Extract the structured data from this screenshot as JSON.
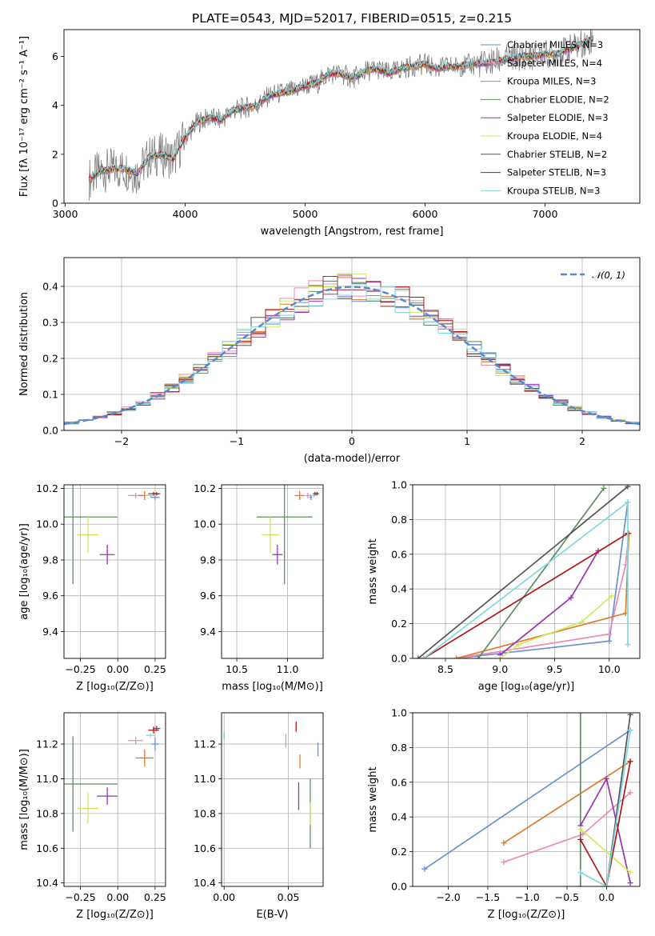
{
  "figure": {
    "title": "PLATE=0543, MJD=52017, FIBERID=0515, z=0.215"
  },
  "colors": {
    "Chabrier MILES": "#6a8fd6",
    "Salpeter MILES": "#e98cb8",
    "Kroupa MILES": "#dd7c2c",
    "Chabrier ELODIE": "#5b8f62",
    "Salpeter ELODIE": "#9a35b2",
    "Kroupa ELODIE": "#d2e85a",
    "Chabrier STELIB": "#555555",
    "Salpeter STELIB": "#b01818",
    "Kroupa STELIB": "#7fd8de"
  },
  "chart_data": [
    {
      "type": "line",
      "id": "spectrum",
      "title": "PLATE=0543, MJD=52017, FIBERID=0515, z=0.215",
      "xlabel": "wavelength [Angstrom, rest frame]",
      "ylabel": "Flux [f_λ 10^-17 erg cm^-2 s^-1 A^-1]",
      "xlim": [
        2990,
        7790
      ],
      "ylim": [
        0,
        7.1
      ],
      "xticks": [
        3000,
        4000,
        5000,
        6000,
        7000
      ],
      "yticks": [
        0,
        2,
        4,
        6
      ],
      "grid": false,
      "legend_position": "right",
      "data_series": {
        "name": "",
        "x": [
          3200,
          3300,
          3400,
          3500,
          3600,
          3700,
          3800,
          3900,
          4000,
          4100,
          4200,
          4300,
          4400,
          4500,
          4600,
          4700,
          4800,
          4900,
          5000,
          5100,
          5200,
          5300,
          5400,
          5500,
          5600,
          5700,
          5800,
          5900,
          6000,
          6100,
          6200,
          6300,
          6400,
          6500,
          6600,
          6700,
          6800,
          6900,
          7000,
          7100,
          7200,
          7300,
          7400
        ],
        "y": [
          1.0,
          1.3,
          1.4,
          1.4,
          1.2,
          1.9,
          2.0,
          1.8,
          2.7,
          3.3,
          3.5,
          3.4,
          3.8,
          3.9,
          4.0,
          4.4,
          4.5,
          4.6,
          4.8,
          4.9,
          5.3,
          5.3,
          5.1,
          5.4,
          5.5,
          5.3,
          5.5,
          5.6,
          5.7,
          5.5,
          5.6,
          5.6,
          5.7,
          5.7,
          5.8,
          5.9,
          6.0,
          6.0,
          6.1,
          6.1,
          6.3,
          6.5,
          6.7
        ]
      },
      "series": [
        {
          "name": "Chabrier MILES",
          "label": "Chabrier MILES, N_SSP=3"
        },
        {
          "name": "Salpeter MILES",
          "label": "Salpeter MILES, N_SSP=4"
        },
        {
          "name": "Kroupa MILES",
          "label": "Kroupa MILES, N_SSP=3"
        },
        {
          "name": "Chabrier ELODIE",
          "label": "Chabrier ELODIE, N_SSP=2"
        },
        {
          "name": "Salpeter ELODIE",
          "label": "Salpeter ELODIE, N_SSP=3"
        },
        {
          "name": "Kroupa ELODIE",
          "label": "Kroupa ELODIE, N_SSP=4"
        },
        {
          "name": "Chabrier STELIB",
          "label": "Chabrier STELIB, N_SSP=2"
        },
        {
          "name": "Salpeter STELIB",
          "label": "Salpeter STELIB, N_SSP=3"
        },
        {
          "name": "Kroupa STELIB",
          "label": "Kroupa STELIB, N_SSP=3"
        }
      ]
    },
    {
      "type": "line",
      "id": "residuals",
      "xlabel": "(data-model)/error",
      "ylabel": "Normed distribution",
      "xlim": [
        -2.5,
        2.5
      ],
      "ylim": [
        0,
        0.48
      ],
      "xticks": [
        -2,
        -1,
        0,
        1,
        2
      ],
      "yticks": [
        0.0,
        0.1,
        0.2,
        0.3,
        0.4
      ],
      "grid": true,
      "legend_position": "top-right",
      "reference_curve": {
        "name": "N(0,1)",
        "label": "𝒩(0, 1)",
        "mean": 0,
        "sigma": 1
      }
    },
    {
      "type": "scatter",
      "id": "age-vs-Z",
      "xlabel": "Z [log10(Z/Z⊙)]",
      "ylabel": "age [log10(age/yr)]",
      "xlim": [
        -0.36,
        0.32
      ],
      "ylim": [
        9.25,
        10.22
      ],
      "xticks": [
        -0.25,
        0.0,
        0.25
      ],
      "yticks": [
        9.4,
        9.6,
        9.8,
        10.0,
        10.2
      ],
      "grid": true,
      "points": [
        {
          "series": "Chabrier MILES",
          "x": 0.25,
          "y": 10.15,
          "xerr": 0.06,
          "yerr": 0.03
        },
        {
          "series": "Salpeter MILES",
          "x": 0.12,
          "y": 10.16,
          "xerr": 0.1,
          "yerr": 0.03
        },
        {
          "series": "Kroupa MILES",
          "x": 0.18,
          "y": 10.16,
          "xerr": 0.08,
          "yerr": 0.05
        },
        {
          "series": "Chabrier ELODIE",
          "x": -0.3,
          "y": 10.04,
          "xerr": 0.6,
          "yerr": 0.75
        },
        {
          "series": "Salpeter ELODIE",
          "x": -0.07,
          "y": 9.83,
          "xerr": 0.1,
          "yerr": 0.11
        },
        {
          "series": "Kroupa ELODIE",
          "x": -0.2,
          "y": 9.94,
          "xerr": 0.14,
          "yerr": 0.2
        },
        {
          "series": "Chabrier STELIB",
          "x": 0.26,
          "y": 10.17,
          "xerr": 0.05,
          "yerr": 0.02
        },
        {
          "series": "Salpeter STELIB",
          "x": 0.24,
          "y": 10.17,
          "xerr": 0.07,
          "yerr": 0.02
        },
        {
          "series": "Kroupa STELIB",
          "x": 0.22,
          "y": 10.16,
          "xerr": 0.07,
          "yerr": 0.02
        }
      ]
    },
    {
      "type": "scatter",
      "id": "age-vs-mass",
      "xlabel": "mass [log10(M/M⊙)]",
      "ylabel": "",
      "xlim": [
        10.35,
        11.35
      ],
      "ylim": [
        9.25,
        10.22
      ],
      "xticks": [
        10.5,
        11.0
      ],
      "yticks": [
        9.4,
        9.6,
        9.8,
        10.0,
        10.2
      ],
      "grid": true,
      "points": [
        {
          "series": "Chabrier MILES",
          "x": 11.23,
          "y": 10.15,
          "xerr": 0.03,
          "yerr": 0.03
        },
        {
          "series": "Salpeter MILES",
          "x": 11.2,
          "y": 10.16,
          "xerr": 0.05,
          "yerr": 0.03
        },
        {
          "series": "Kroupa MILES",
          "x": 11.12,
          "y": 10.16,
          "xerr": 0.1,
          "yerr": 0.05
        },
        {
          "series": "Chabrier ELODIE",
          "x": 10.97,
          "y": 10.04,
          "xerr": 0.55,
          "yerr": 0.75
        },
        {
          "series": "Salpeter ELODIE",
          "x": 10.9,
          "y": 9.83,
          "xerr": 0.1,
          "yerr": 0.11
        },
        {
          "series": "Kroupa ELODIE",
          "x": 10.83,
          "y": 9.94,
          "xerr": 0.17,
          "yerr": 0.2
        },
        {
          "series": "Chabrier STELIB",
          "x": 11.29,
          "y": 10.17,
          "xerr": 0.04,
          "yerr": 0.02
        },
        {
          "series": "Salpeter STELIB",
          "x": 11.27,
          "y": 10.17,
          "xerr": 0.04,
          "yerr": 0.02
        },
        {
          "series": "Kroupa STELIB",
          "x": 11.26,
          "y": 10.16,
          "xerr": 0.04,
          "yerr": 0.02
        }
      ]
    },
    {
      "type": "line",
      "id": "cumulative-mass-weight-age",
      "xlabel": "age [log10(age/yr)]",
      "ylabel": "mass weight",
      "xlim": [
        8.2,
        10.28
      ],
      "ylim": [
        0,
        1
      ],
      "xticks": [
        8.5,
        9.0,
        9.5,
        10.0
      ],
      "yticks": [
        0.0,
        0.2,
        0.4,
        0.6,
        0.8,
        1.0
      ],
      "grid": true,
      "series": [
        {
          "name": "Chabrier MILES",
          "x": [
            8.6,
            10.0,
            10.17
          ],
          "y": [
            0.0,
            0.1,
            0.9
          ]
        },
        {
          "name": "Salpeter MILES",
          "x": [
            8.6,
            10.0,
            10.15,
            10.18
          ],
          "y": [
            0.0,
            0.14,
            0.54,
            0.72
          ]
        },
        {
          "name": "Kroupa MILES",
          "x": [
            8.6,
            10.15,
            10.18
          ],
          "y": [
            0.0,
            0.26,
            0.72
          ]
        },
        {
          "name": "Chabrier ELODIE",
          "x": [
            8.8,
            9.95
          ],
          "y": [
            0.0,
            0.98
          ]
        },
        {
          "name": "Salpeter ELODIE",
          "x": [
            9.0,
            9.65,
            9.9
          ],
          "y": [
            0.02,
            0.35,
            0.62
          ]
        },
        {
          "name": "Kroupa ELODIE",
          "x": [
            9.0,
            9.17,
            9.75,
            10.02
          ],
          "y": [
            0.0,
            0.08,
            0.21,
            0.36
          ]
        },
        {
          "name": "Chabrier STELIB",
          "x": [
            8.25,
            10.17
          ],
          "y": [
            0.0,
            0.99
          ]
        },
        {
          "name": "Salpeter STELIB",
          "x": [
            8.3,
            10.17
          ],
          "y": [
            0.0,
            0.72
          ]
        },
        {
          "name": "Kroupa STELIB",
          "x": [
            8.3,
            10.17,
            10.17
          ],
          "y": [
            0.0,
            0.9,
            0.08
          ]
        }
      ]
    },
    {
      "type": "scatter",
      "id": "mass-vs-Z",
      "xlabel": "Z [log10(Z/Z⊙)]",
      "ylabel": "mass [log10(M/M⊙)]",
      "xlim": [
        -0.36,
        0.32
      ],
      "ylim": [
        10.38,
        11.38
      ],
      "xticks": [
        -0.25,
        0.0,
        0.25
      ],
      "yticks": [
        10.4,
        10.6,
        10.8,
        11.0,
        11.2
      ],
      "grid": true,
      "points": [
        {
          "series": "Chabrier MILES",
          "x": 0.25,
          "y": 11.2,
          "xerr": 0.05,
          "yerr": 0.08
        },
        {
          "series": "Salpeter MILES",
          "x": 0.12,
          "y": 11.22,
          "xerr": 0.1,
          "yerr": 0.04
        },
        {
          "series": "Kroupa MILES",
          "x": 0.18,
          "y": 11.12,
          "xerr": 0.12,
          "yerr": 0.1
        },
        {
          "series": "Chabrier ELODIE",
          "x": -0.3,
          "y": 10.97,
          "xerr": 0.6,
          "yerr": 0.55
        },
        {
          "series": "Salpeter ELODIE",
          "x": -0.07,
          "y": 10.9,
          "xerr": 0.14,
          "yerr": 0.1
        },
        {
          "series": "Kroupa ELODIE",
          "x": -0.2,
          "y": 10.83,
          "xerr": 0.14,
          "yerr": 0.18
        },
        {
          "series": "Chabrier STELIB",
          "x": 0.26,
          "y": 11.29,
          "xerr": 0.05,
          "yerr": 0.03
        },
        {
          "series": "Salpeter STELIB",
          "x": 0.24,
          "y": 11.28,
          "xerr": 0.07,
          "yerr": 0.04
        },
        {
          "series": "Kroupa STELIB",
          "x": 0.22,
          "y": 11.25,
          "xerr": 0.06,
          "yerr": 0.02
        }
      ]
    },
    {
      "type": "scatter",
      "id": "mass-vs-EBV",
      "xlabel": "E(B-V)",
      "ylabel": "",
      "xlim": [
        -0.002,
        0.077
      ],
      "ylim": [
        10.38,
        11.38
      ],
      "xticks": [
        0.0,
        0.05
      ],
      "yticks": [
        10.4,
        10.6,
        10.8,
        11.0,
        11.2
      ],
      "grid": true,
      "points": [
        {
          "series": "Chabrier MILES",
          "x": 0.073,
          "y": 11.17,
          "yerr": 0.08
        },
        {
          "series": "Salpeter MILES",
          "x": 0.048,
          "y": 11.22,
          "yerr": 0.08
        },
        {
          "series": "Kroupa MILES",
          "x": 0.059,
          "y": 11.1,
          "yerr": 0.08
        },
        {
          "series": "Chabrier ELODIE",
          "x": 0.067,
          "y": 10.8,
          "yerr": 0.4
        },
        {
          "series": "Salpeter ELODIE",
          "x": 0.058,
          "y": 10.9,
          "yerr": 0.16
        },
        {
          "series": "Kroupa ELODIE",
          "x": 0.067,
          "y": 10.8,
          "yerr": 0.13
        },
        {
          "series": "Chabrier STELIB",
          "x": 0.0,
          "y": 11.25,
          "yerr": 0.04
        },
        {
          "series": "Salpeter STELIB",
          "x": 0.056,
          "y": 11.3,
          "yerr": 0.06
        },
        {
          "series": "Kroupa STELIB",
          "x": 0.0,
          "y": 11.25,
          "yerr": 0.04
        }
      ]
    },
    {
      "type": "line",
      "id": "cumulative-mass-weight-Z",
      "xlabel": "Z [log10(Z/Z⊙)]",
      "ylabel": "mass weight",
      "xlim": [
        -2.45,
        0.42
      ],
      "ylim": [
        0,
        1
      ],
      "xticks": [
        -2.0,
        -1.5,
        -1.0,
        -0.5,
        0.0
      ],
      "yticks": [
        0.0,
        0.2,
        0.4,
        0.6,
        0.8,
        1.0
      ],
      "grid": true,
      "series": [
        {
          "name": "Chabrier MILES",
          "x": [
            -2.3,
            0.3
          ],
          "y": [
            0.1,
            0.9
          ]
        },
        {
          "name": "Salpeter MILES",
          "x": [
            -1.3,
            -0.3,
            0.3
          ],
          "y": [
            0.14,
            0.3,
            0.54
          ]
        },
        {
          "name": "Kroupa MILES",
          "x": [
            -1.3,
            0.3
          ],
          "y": [
            0.25,
            0.72
          ]
        },
        {
          "name": "Chabrier ELODIE",
          "x": [
            -0.33,
            -0.33
          ],
          "y": [
            0.0,
            1.0
          ]
        },
        {
          "name": "Salpeter ELODIE",
          "x": [
            -0.33,
            0.0,
            0.3
          ],
          "y": [
            0.35,
            0.62,
            0.02
          ]
        },
        {
          "name": "Kroupa ELODIE",
          "x": [
            -0.33,
            0.3
          ],
          "y": [
            0.33,
            0.08
          ]
        },
        {
          "name": "Chabrier STELIB",
          "x": [
            0.0,
            0.3
          ],
          "y": [
            0.0,
            0.99
          ]
        },
        {
          "name": "Salpeter STELIB",
          "x": [
            -0.33,
            0.0,
            0.3
          ],
          "y": [
            0.27,
            0.0,
            0.72
          ]
        },
        {
          "name": "Kroupa STELIB",
          "x": [
            -0.33,
            0.0,
            0.3
          ],
          "y": [
            0.08,
            0.0,
            0.9
          ]
        }
      ]
    }
  ]
}
